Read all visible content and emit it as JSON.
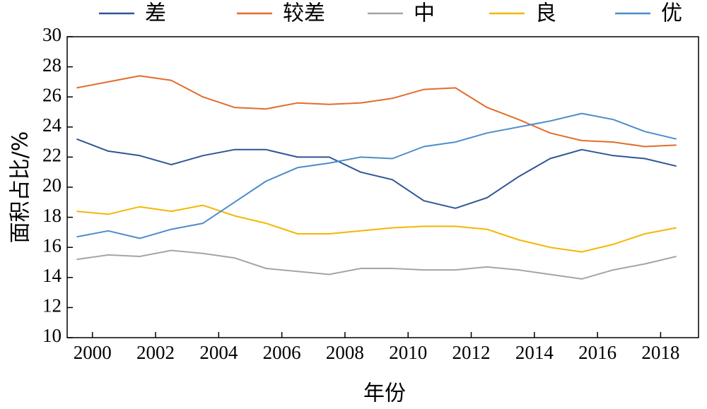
{
  "chart_data": {
    "type": "line",
    "xlabel": "年份",
    "ylabel": "面积占比/%",
    "ylim": [
      10,
      30
    ],
    "yticks": [
      10,
      12,
      14,
      16,
      18,
      20,
      22,
      24,
      26,
      28,
      30
    ],
    "xticks": [
      2000,
      2002,
      2004,
      2006,
      2008,
      2010,
      2012,
      2014,
      2016,
      2018
    ],
    "xlim": [
      1999.2,
      2019.2
    ],
    "legend_position": "top",
    "grid": false,
    "x": [
      1999.5,
      2000.5,
      2001.5,
      2002.5,
      2003.5,
      2004.5,
      2005.5,
      2006.5,
      2007.5,
      2008.5,
      2009.5,
      2010.5,
      2011.5,
      2012.5,
      2013.5,
      2014.5,
      2015.5,
      2016.5,
      2017.5,
      2018.5
    ],
    "series": [
      {
        "name": "差",
        "color": "#2f5597",
        "values": [
          23.2,
          22.4,
          22.1,
          21.5,
          22.1,
          22.5,
          22.5,
          22.0,
          22.0,
          21.0,
          20.5,
          19.1,
          18.6,
          19.3,
          20.7,
          21.9,
          22.5,
          22.1,
          21.9,
          21.4
        ]
      },
      {
        "name": "较差",
        "color": "#e36c2b",
        "values": [
          26.6,
          27.0,
          27.4,
          27.1,
          26.0,
          25.3,
          25.2,
          25.6,
          25.5,
          25.6,
          25.9,
          26.5,
          26.6,
          25.3,
          24.5,
          23.6,
          23.1,
          23.0,
          22.7,
          22.8
        ]
      },
      {
        "name": "中",
        "color": "#a5a5a5",
        "values": [
          15.2,
          15.5,
          15.4,
          15.8,
          15.6,
          15.3,
          14.6,
          14.4,
          14.2,
          14.6,
          14.6,
          14.5,
          14.5,
          14.7,
          14.5,
          14.2,
          13.9,
          14.5,
          14.9,
          15.4
        ]
      },
      {
        "name": "良",
        "color": "#f2b800",
        "values": [
          18.4,
          18.2,
          18.7,
          18.4,
          18.8,
          18.1,
          17.6,
          16.9,
          16.9,
          17.1,
          17.3,
          17.4,
          17.4,
          17.2,
          16.5,
          16.0,
          15.7,
          16.2,
          16.9,
          17.3
        ]
      },
      {
        "name": "优",
        "color": "#4a8ccc",
        "values": [
          16.7,
          17.1,
          16.6,
          17.2,
          17.6,
          19.0,
          20.4,
          21.3,
          21.6,
          22.0,
          21.9,
          22.7,
          23.0,
          23.6,
          24.0,
          24.4,
          24.9,
          24.5,
          23.7,
          23.2
        ]
      }
    ]
  }
}
